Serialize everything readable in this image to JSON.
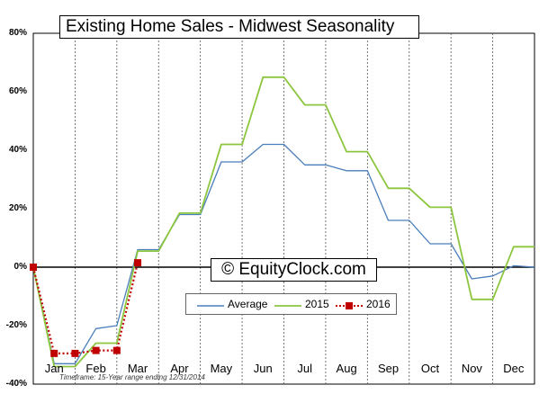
{
  "chart_data": {
    "type": "line",
    "title": "Existing Home Sales - Midwest Seasonality",
    "watermark": "© EquityClock.com",
    "note": "Timeframe: 15-Year range ending 12/31/2014",
    "x_categories": [
      "Jan",
      "Feb",
      "Mar",
      "Apr",
      "May",
      "Jun",
      "Jul",
      "Aug",
      "Sep",
      "Oct",
      "Nov",
      "Dec"
    ],
    "y_ticks": [
      "80%",
      "60%",
      "40%",
      "20%",
      "0%",
      "-20%",
      "-40%"
    ],
    "ylim": [
      -40,
      80
    ],
    "grid": "vertical dashed at month boundaries",
    "legend_position": "bottom-center",
    "series": [
      {
        "name": "Average",
        "color": "#4a7ebb",
        "values": [
          [
            0,
            0
          ],
          [
            0.5,
            -33
          ],
          [
            1.0,
            -33
          ],
          [
            1.5,
            -21
          ],
          [
            2.0,
            -20
          ],
          [
            2.5,
            6
          ],
          [
            3.0,
            6
          ],
          [
            3.5,
            18
          ],
          [
            4.0,
            18
          ],
          [
            4.5,
            36
          ],
          [
            5.0,
            36
          ],
          [
            5.5,
            42
          ],
          [
            6.0,
            42
          ],
          [
            6.5,
            35
          ],
          [
            7.0,
            35
          ],
          [
            7.5,
            33
          ],
          [
            8.0,
            33
          ],
          [
            8.5,
            16
          ],
          [
            9.0,
            16
          ],
          [
            9.5,
            8
          ],
          [
            10.0,
            8
          ],
          [
            10.5,
            -4
          ],
          [
            11.0,
            -3
          ],
          [
            11.5,
            0.5
          ],
          [
            12.0,
            0
          ]
        ]
      },
      {
        "name": "2015",
        "color": "#8cc63f",
        "values": [
          [
            0,
            0
          ],
          [
            0.5,
            -34
          ],
          [
            1.0,
            -34
          ],
          [
            1.5,
            -26
          ],
          [
            2.0,
            -26
          ],
          [
            2.5,
            5.5
          ],
          [
            3.0,
            5.5
          ],
          [
            3.5,
            18.5
          ],
          [
            4.0,
            18.5
          ],
          [
            4.5,
            42
          ],
          [
            5.0,
            42
          ],
          [
            5.5,
            65
          ],
          [
            6.0,
            65
          ],
          [
            6.5,
            55.5
          ],
          [
            7.0,
            55.5
          ],
          [
            7.5,
            39.5
          ],
          [
            8.0,
            39.5
          ],
          [
            8.5,
            27
          ],
          [
            9.0,
            27
          ],
          [
            9.5,
            20.5
          ],
          [
            10.0,
            20.5
          ],
          [
            10.5,
            -11
          ],
          [
            11.0,
            -11
          ],
          [
            11.5,
            7
          ],
          [
            12.0,
            7
          ]
        ]
      },
      {
        "name": "2016",
        "color": "#c00000",
        "values": [
          [
            0,
            0
          ],
          [
            0.5,
            -29.5
          ],
          [
            1.0,
            -29.5
          ],
          [
            1.5,
            -28.5
          ],
          [
            2.0,
            -28.5
          ],
          [
            2.5,
            1.5
          ]
        ]
      }
    ]
  }
}
